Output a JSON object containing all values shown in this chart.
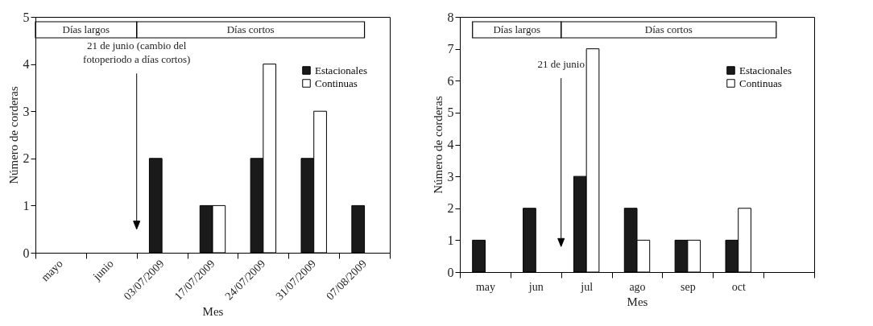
{
  "chart_data": [
    {
      "type": "bar",
      "xlabel": "Mes",
      "ylabel": "Número de corderas",
      "categories": [
        "mayo",
        "junio",
        "03/07/2009",
        "17/07/2009",
        "24/07/2009",
        "31/07/2009",
        "07/08/2009"
      ],
      "series": [
        {
          "name": "Estacionales",
          "color": "#1a1a1a",
          "values": [
            null,
            null,
            2,
            1,
            2,
            2,
            1
          ]
        },
        {
          "name": "Continuas",
          "color": "#ffffff",
          "values": [
            null,
            null,
            null,
            1,
            4,
            3,
            null
          ]
        }
      ],
      "ylim": [
        0,
        5
      ],
      "yticks": [
        0,
        1,
        2,
        3,
        4,
        5
      ],
      "legend": "top right",
      "annotations": [
        "Días largos",
        "Días cortos",
        "21 de junio (cambio del\nfotoperiodo a días cortos)"
      ]
    },
    {
      "type": "bar",
      "xlabel": "Mes",
      "ylabel": "Número de corderas",
      "categories": [
        "may",
        "jun",
        "jul",
        "ago",
        "sep",
        "oct",
        null
      ],
      "series": [
        {
          "name": "Estacionales",
          "color": "#1a1a1a",
          "values": [
            1,
            2,
            3,
            2,
            1,
            1,
            null
          ]
        },
        {
          "name": "Continuas",
          "color": "#ffffff",
          "values": [
            null,
            null,
            7,
            1,
            1,
            2,
            null
          ]
        }
      ],
      "ylim": [
        0,
        8
      ],
      "yticks": [
        0,
        1,
        2,
        3,
        4,
        5,
        6,
        7,
        8
      ],
      "legend": "top right",
      "annotations": [
        "Días largos",
        "Días cortos",
        "21 de junio"
      ]
    }
  ]
}
